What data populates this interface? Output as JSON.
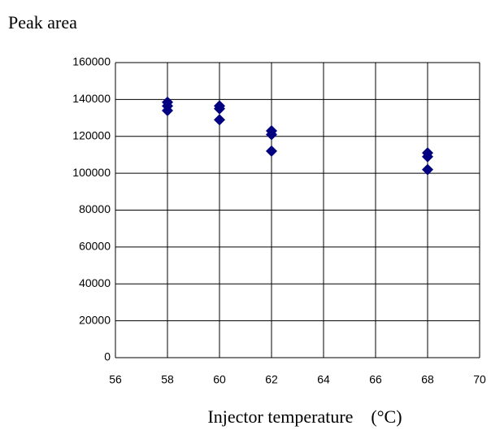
{
  "chart_data": {
    "type": "scatter",
    "y_axis_label": "Peak area",
    "x_axis_label": "Injector temperature　(°C)",
    "series": [
      {
        "color": "#000080",
        "x": [
          58,
          58,
          58,
          60,
          60,
          60,
          62,
          62,
          62,
          68,
          68,
          68
        ],
        "values": [
          138500,
          136500,
          134000,
          136500,
          135000,
          129000,
          123000,
          121000,
          112000,
          111000,
          109000,
          102000
        ]
      }
    ],
    "xlim": [
      56,
      70
    ],
    "xticks": [
      56,
      58,
      60,
      62,
      64,
      66,
      68,
      70
    ],
    "ylim": [
      0,
      160000
    ],
    "yticks": [
      0,
      20000,
      40000,
      60000,
      80000,
      100000,
      120000,
      140000,
      160000
    ],
    "grid": true
  }
}
